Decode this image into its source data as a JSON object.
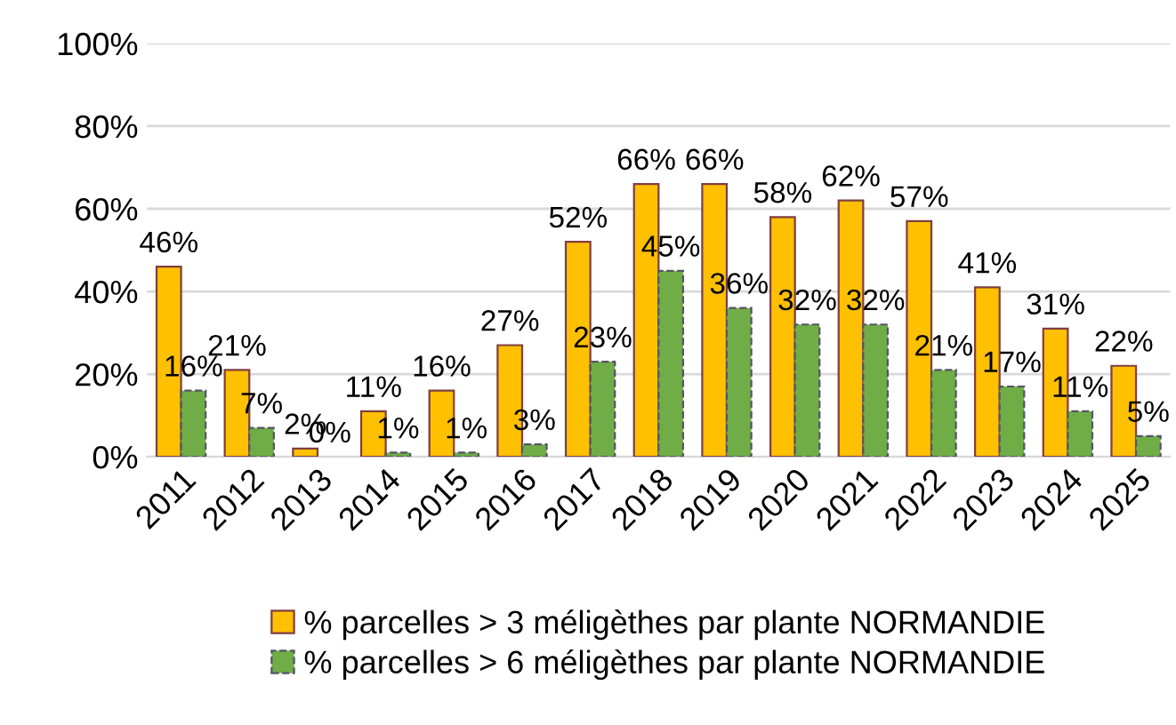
{
  "chart_data": {
    "type": "bar",
    "categories": [
      "2011",
      "2012",
      "2013",
      "2014",
      "2015",
      "2016",
      "2017",
      "2018",
      "2019",
      "2020",
      "2021",
      "2022",
      "2023",
      "2024",
      "2025"
    ],
    "series": [
      {
        "name": "% parcelles > 3 méligèthes par plante NORMANDIE",
        "color": "#ffc000",
        "values": [
          46,
          21,
          2,
          11,
          16,
          27,
          52,
          66,
          66,
          58,
          62,
          57,
          41,
          31,
          22
        ],
        "value_labels": [
          "46%",
          "21%",
          "2%",
          "11%",
          "16%",
          "27%",
          "52%",
          "66%",
          "66%",
          "58%",
          "62%",
          "57%",
          "41%",
          "31%",
          "22%"
        ]
      },
      {
        "name": "% parcelles > 6 méligèthes par plante NORMANDIE",
        "color": "#70ad47",
        "values": [
          16,
          7,
          0,
          1,
          1,
          3,
          23,
          45,
          36,
          32,
          32,
          21,
          17,
          11,
          5
        ],
        "value_labels": [
          "16%",
          "7%",
          "0%",
          "1%",
          "1%",
          "3%",
          "23%",
          "45%",
          "36%",
          "32%",
          "32%",
          "21%",
          "17%",
          "11%",
          "5%"
        ],
        "line_style": "dashed"
      }
    ],
    "ylim": [
      0,
      100
    ],
    "yticks": [
      {
        "value": 0,
        "label": "0%"
      },
      {
        "value": 20,
        "label": "20%"
      },
      {
        "value": 40,
        "label": "40%"
      },
      {
        "value": 60,
        "label": "60%"
      },
      {
        "value": 80,
        "label": "80%"
      },
      {
        "value": 100,
        "label": "100%"
      }
    ],
    "grid": "y",
    "legend": "bottom"
  }
}
